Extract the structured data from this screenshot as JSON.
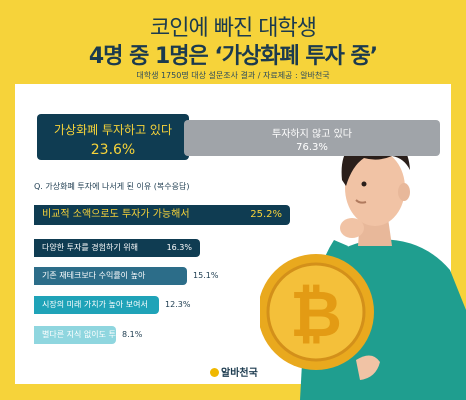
{
  "header": {
    "title_line1": "코인에 빠진 대학생",
    "title_line2": "4명 중 1명은 ‘가상화폐 투자 중’",
    "source": "대학생 1750명 대상 설문조사 결과 / 자료제공 : 알바천국"
  },
  "summary": {
    "yes_label": "가상화폐 투자하고 있다",
    "yes_value": "23.6%",
    "no_label": "투자하지 않고 있다",
    "no_value": "76.3%"
  },
  "question": "Q. 가상화폐 투자에 나서게 된 이유 (복수응답)",
  "brand": "알바천국",
  "colors": {
    "background": "#f6d33a",
    "primary": "#0f3c52",
    "accent": "#f6d33a",
    "gray": "#a0a4a9"
  },
  "chart_data": {
    "type": "bar",
    "orientation": "horizontal",
    "categories": [
      "비교적 소액으로도 투자가 가능해서",
      "다양한 투자를 경험하기 위해",
      "기존 재테크보다 수익률이 높아",
      "시장의 미래 가치가 높아 보여서",
      "별다른 지식 없이도 투자할 수 있어서"
    ],
    "values": [
      25.2,
      16.3,
      15.1,
      12.3,
      8.1
    ],
    "value_labels": [
      "25.2%",
      "16.3%",
      "15.1%",
      "12.3%",
      "8.1%"
    ],
    "colors": [
      "#0f3c52",
      "#0f3c52",
      "#2c6d89",
      "#1fa3b8",
      "#8fd6df"
    ],
    "grid": false,
    "legend": "none"
  }
}
